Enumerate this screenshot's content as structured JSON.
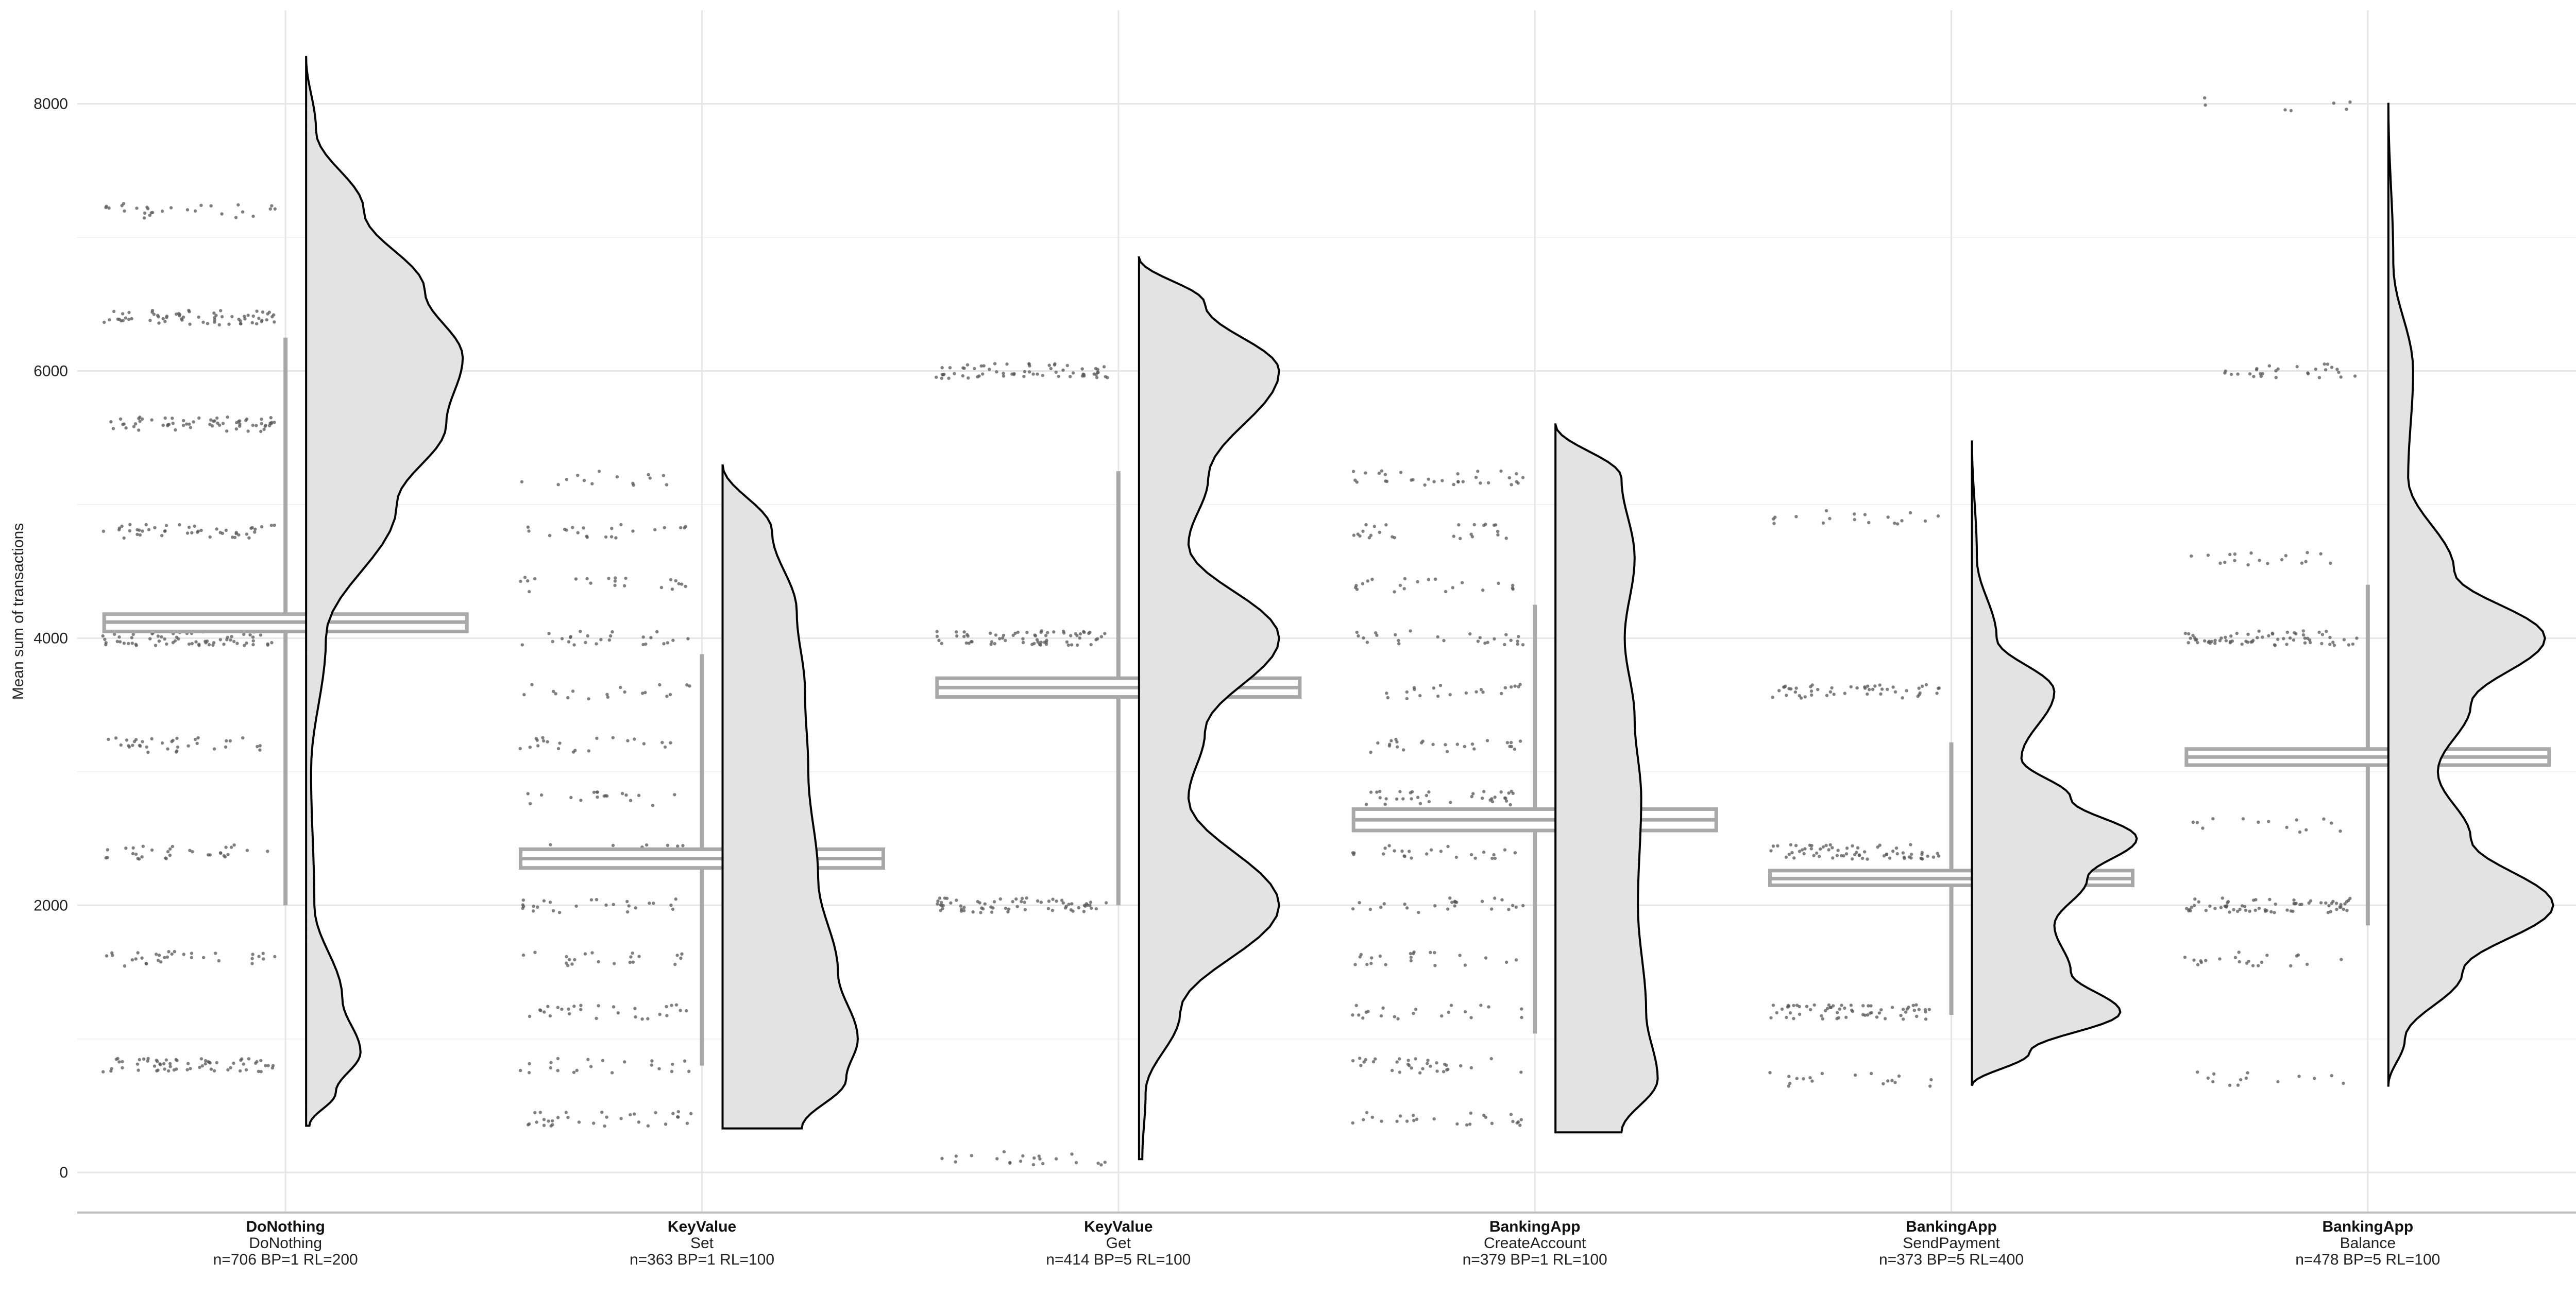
{
  "chart_data": {
    "type": "raincloud",
    "ylabel": "Mean sum of transactions",
    "xlabel": "",
    "title": "",
    "ylim": [
      -300,
      8700
    ],
    "yticks": [
      0,
      2000,
      4000,
      6000,
      8000
    ],
    "grid": true,
    "categories": [
      {
        "main": "DoNothing",
        "sub": "DoNothing",
        "info": "n=706 BP=1 RL=200",
        "min": 350,
        "max": 8350,
        "median": 4120,
        "q1": 4050,
        "q3": 4180,
        "whisker_low": 2000,
        "whisker_high": 6250,
        "clusters": [
          [
            800,
            0.9
          ],
          [
            1600,
            0.45
          ],
          [
            2400,
            0.45
          ],
          [
            3200,
            0.5
          ],
          [
            4000,
            0.95
          ],
          [
            4800,
            0.65
          ],
          [
            5600,
            0.9
          ],
          [
            6400,
            0.95
          ],
          [
            7200,
            0.4
          ]
        ],
        "density": [
          [
            350,
            0.02
          ],
          [
            600,
            0.18
          ],
          [
            900,
            0.33
          ],
          [
            1300,
            0.22
          ],
          [
            2000,
            0.05
          ],
          [
            3000,
            0.03
          ],
          [
            4000,
            0.12
          ],
          [
            5000,
            0.55
          ],
          [
            5600,
            0.85
          ],
          [
            6100,
            0.95
          ],
          [
            6600,
            0.72
          ],
          [
            7200,
            0.35
          ],
          [
            7800,
            0.06
          ],
          [
            8350,
            0.0
          ]
        ]
      },
      {
        "main": "KeyValue",
        "sub": "Set",
        "info": "n=363 BP=1 RL=100",
        "min": 330,
        "max": 5300,
        "median": 2350,
        "q1": 2280,
        "q3": 2420,
        "whisker_low": 800,
        "whisker_high": 3880,
        "clusters": [
          [
            400,
            0.45
          ],
          [
            800,
            0.3
          ],
          [
            1200,
            0.4
          ],
          [
            1600,
            0.3
          ],
          [
            2000,
            0.35
          ],
          [
            2400,
            0.4
          ],
          [
            2800,
            0.25
          ],
          [
            3200,
            0.3
          ],
          [
            3600,
            0.25
          ],
          [
            4000,
            0.35
          ],
          [
            4400,
            0.3
          ],
          [
            4800,
            0.3
          ],
          [
            5200,
            0.2
          ]
        ],
        "density": [
          [
            330,
            0.48
          ],
          [
            700,
            0.75
          ],
          [
            1000,
            0.82
          ],
          [
            1500,
            0.7
          ],
          [
            2200,
            0.58
          ],
          [
            3000,
            0.52
          ],
          [
            3600,
            0.5
          ],
          [
            4200,
            0.45
          ],
          [
            4800,
            0.3
          ],
          [
            5300,
            0.0
          ]
        ]
      },
      {
        "main": "KeyValue",
        "sub": "Get",
        "info": "n=414 BP=5 RL=100",
        "min": 100,
        "max": 6850,
        "median": 3630,
        "q1": 3560,
        "q3": 3700,
        "whisker_low": 2000,
        "whisker_high": 5250,
        "clusters": [
          [
            100,
            0.3
          ],
          [
            2000,
            0.95
          ],
          [
            4000,
            0.95
          ],
          [
            6000,
            0.9
          ]
        ],
        "density": [
          [
            100,
            0.02
          ],
          [
            600,
            0.04
          ],
          [
            1200,
            0.25
          ],
          [
            2000,
            0.85
          ],
          [
            2800,
            0.3
          ],
          [
            3300,
            0.4
          ],
          [
            4000,
            0.85
          ],
          [
            4700,
            0.3
          ],
          [
            5200,
            0.42
          ],
          [
            6000,
            0.85
          ],
          [
            6500,
            0.4
          ],
          [
            6850,
            0.0
          ]
        ]
      },
      {
        "main": "BankingApp",
        "sub": "CreateAccount",
        "info": "n=379 BP=1 RL=100",
        "min": 300,
        "max": 5600,
        "median": 2640,
        "q1": 2560,
        "q3": 2720,
        "whisker_low": 1040,
        "whisker_high": 4250,
        "clusters": [
          [
            400,
            0.35
          ],
          [
            800,
            0.45
          ],
          [
            1200,
            0.3
          ],
          [
            1600,
            0.3
          ],
          [
            2000,
            0.35
          ],
          [
            2400,
            0.35
          ],
          [
            2800,
            0.5
          ],
          [
            3200,
            0.35
          ],
          [
            3600,
            0.3
          ],
          [
            4000,
            0.35
          ],
          [
            4400,
            0.3
          ],
          [
            4800,
            0.35
          ],
          [
            5200,
            0.45
          ]
        ],
        "density": [
          [
            300,
            0.4
          ],
          [
            700,
            0.62
          ],
          [
            1200,
            0.55
          ],
          [
            2000,
            0.5
          ],
          [
            2800,
            0.52
          ],
          [
            3400,
            0.48
          ],
          [
            4000,
            0.42
          ],
          [
            4600,
            0.48
          ],
          [
            5200,
            0.4
          ],
          [
            5600,
            0.0
          ]
        ]
      },
      {
        "main": "BankingApp",
        "sub": "SendPayment",
        "info": "n=373 BP=5 RL=400",
        "min": 650,
        "max": 5480,
        "median": 2200,
        "q1": 2150,
        "q3": 2260,
        "whisker_low": 1180,
        "whisker_high": 3220,
        "clusters": [
          [
            700,
            0.25
          ],
          [
            1200,
            0.9
          ],
          [
            2400,
            0.95
          ],
          [
            3600,
            0.7
          ],
          [
            4900,
            0.25
          ]
        ],
        "density": [
          [
            650,
            0.0
          ],
          [
            900,
            0.35
          ],
          [
            1200,
            0.9
          ],
          [
            1500,
            0.6
          ],
          [
            1850,
            0.5
          ],
          [
            2200,
            0.7
          ],
          [
            2500,
            1.0
          ],
          [
            2800,
            0.6
          ],
          [
            3100,
            0.3
          ],
          [
            3600,
            0.5
          ],
          [
            4000,
            0.15
          ],
          [
            4600,
            0.03
          ],
          [
            5480,
            0.0
          ]
        ]
      },
      {
        "main": "BankingApp",
        "sub": "Balance",
        "info": "n=478 BP=5 RL=100",
        "min": 650,
        "max": 8000,
        "median": 3110,
        "q1": 3050,
        "q3": 3170,
        "whisker_low": 1850,
        "whisker_high": 4400,
        "clusters": [
          [
            700,
            0.2
          ],
          [
            1600,
            0.3
          ],
          [
            2000,
            0.95
          ],
          [
            2600,
            0.2
          ],
          [
            4000,
            0.95
          ],
          [
            4600,
            0.25
          ],
          [
            6000,
            0.4
          ],
          [
            8000,
            0.1
          ]
        ],
        "density": [
          [
            650,
            0.0
          ],
          [
            1000,
            0.1
          ],
          [
            1500,
            0.45
          ],
          [
            2000,
            1.0
          ],
          [
            2500,
            0.5
          ],
          [
            3000,
            0.3
          ],
          [
            3500,
            0.5
          ],
          [
            4000,
            0.95
          ],
          [
            4500,
            0.4
          ],
          [
            5200,
            0.12
          ],
          [
            6000,
            0.15
          ],
          [
            6800,
            0.03
          ],
          [
            8000,
            0.0
          ]
        ]
      }
    ]
  }
}
